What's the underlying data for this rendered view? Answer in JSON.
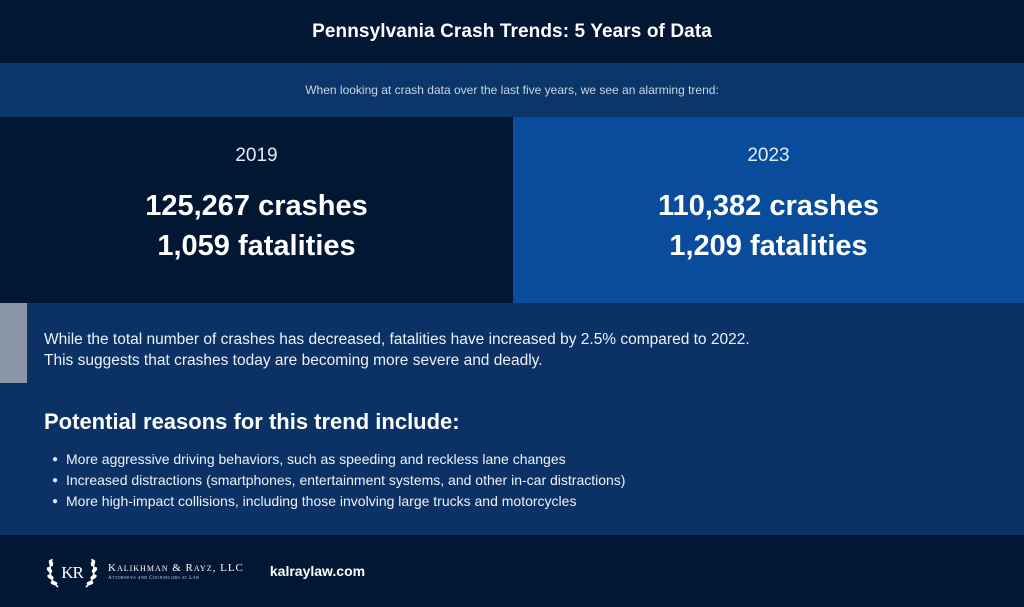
{
  "header": {
    "title": "Pennsylvania Crash Trends: 5 Years of Data",
    "subtitle": "When looking at crash data over the last five years, we see an alarming trend:"
  },
  "stats": [
    {
      "year": "2019",
      "crashes": "125,267 crashes",
      "fatalities": "1,059 fatalities"
    },
    {
      "year": "2023",
      "crashes": "110,382 crashes",
      "fatalities": "1,209 fatalities"
    }
  ],
  "note": {
    "line1": "While the total number of crashes has decreased, fatalities have increased by 2.5% compared to 2022.",
    "line2": "This suggests that crashes today are becoming more severe and deadly."
  },
  "reasons": {
    "title": "Potential reasons for this trend include:",
    "items": [
      "More aggressive driving behaviors, such as speeding and reckless lane changes",
      "Increased distractions (smartphones, entertainment systems, and other in-car distractions)",
      "More high-impact collisions, including those involving large trucks and motorcycles"
    ]
  },
  "footer": {
    "firm_name": "Kalikhman & Rayz, LLC",
    "firm_tagline": "Attorneys and Counselors at Law",
    "website": "kalraylaw.com",
    "logo_monogram": "KR"
  },
  "colors": {
    "dark_navy": "#021733",
    "mid_blue": "#0c3669",
    "bright_blue": "#0a4c9c",
    "body_blue": "#0b3165",
    "accent_gray": "#8896a8"
  }
}
